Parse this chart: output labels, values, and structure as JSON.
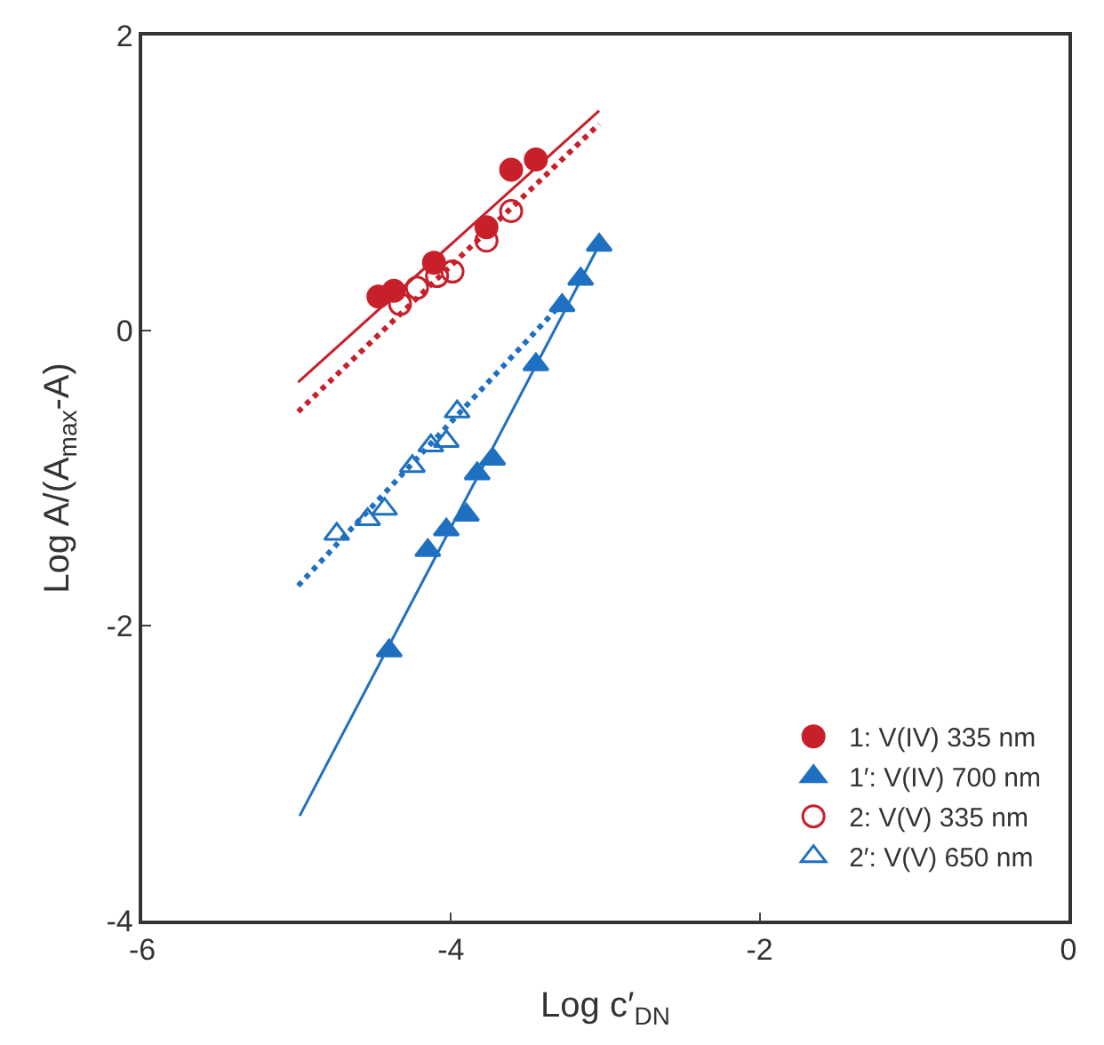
{
  "chart_data": {
    "type": "scatter",
    "xlabel": "Log c′$_{DN}$",
    "ylabel": "Log A/(A$_{max}$-A)",
    "xlim": [
      -6,
      0
    ],
    "xticks": [
      -6,
      -4,
      -2,
      0
    ],
    "ylim": [
      -4,
      2
    ],
    "yticks": [
      -4,
      -2,
      0,
      2
    ],
    "legend": "bottom right",
    "series": [
      {
        "name": "1: V(IV) 335 nm",
        "color": "#c8202a",
        "marker": "circle",
        "x": [
          -4.47,
          -4.37,
          -4.11,
          -3.77,
          -3.61,
          -3.45
        ],
        "values": [
          0.23,
          0.27,
          0.46,
          0.7,
          1.09,
          1.16
        ]
      },
      {
        "name": "1′: V(IV) 700 nm",
        "color": "#1f70c1",
        "marker": "triangle",
        "x": [
          -4.4,
          -4.15,
          -4.03,
          -3.9,
          -3.83,
          -3.73,
          -3.45,
          -3.28,
          -3.16,
          -3.04
        ],
        "values": [
          -2.17,
          -1.49,
          -1.35,
          -1.25,
          -0.97,
          -0.87,
          -0.23,
          0.17,
          0.35,
          0.58
        ]
      },
      {
        "name": "2: V(V) 335 nm",
        "color": "#c8202a",
        "marker": "circle-open",
        "x": [
          -4.33,
          -4.22,
          -4.09,
          -3.99,
          -3.77,
          -3.61
        ],
        "values": [
          0.18,
          0.29,
          0.37,
          0.4,
          0.61,
          0.81
        ]
      },
      {
        "name": "2′: V(V) 650 nm",
        "color": "#1f70c1",
        "marker": "triangle-open",
        "x": [
          -4.74,
          -4.54,
          -4.43,
          -4.25,
          -4.13,
          -4.03,
          -3.96
        ],
        "values": [
          -1.38,
          -1.28,
          -1.21,
          -0.92,
          -0.78,
          -0.75,
          -0.55
        ]
      },
      {
        "type": "line",
        "color": "#c8202a",
        "line_style": "solid",
        "x": [
          -4.99,
          -3.04
        ],
        "values": [
          -0.35,
          1.49
        ]
      },
      {
        "type": "line",
        "color": "#c8202a",
        "line_style": "dotted",
        "x": [
          -4.99,
          -3.04
        ],
        "values": [
          -0.55,
          1.4
        ]
      },
      {
        "type": "line",
        "color": "#1f70c1",
        "line_style": "solid",
        "x": [
          -4.98,
          -3.04
        ],
        "values": [
          -3.29,
          0.58
        ]
      },
      {
        "type": "line",
        "color": "#1f70c1",
        "line_style": "dotted",
        "x": [
          -4.99,
          -3.25
        ],
        "values": [
          -1.73,
          0.22
        ]
      }
    ]
  }
}
